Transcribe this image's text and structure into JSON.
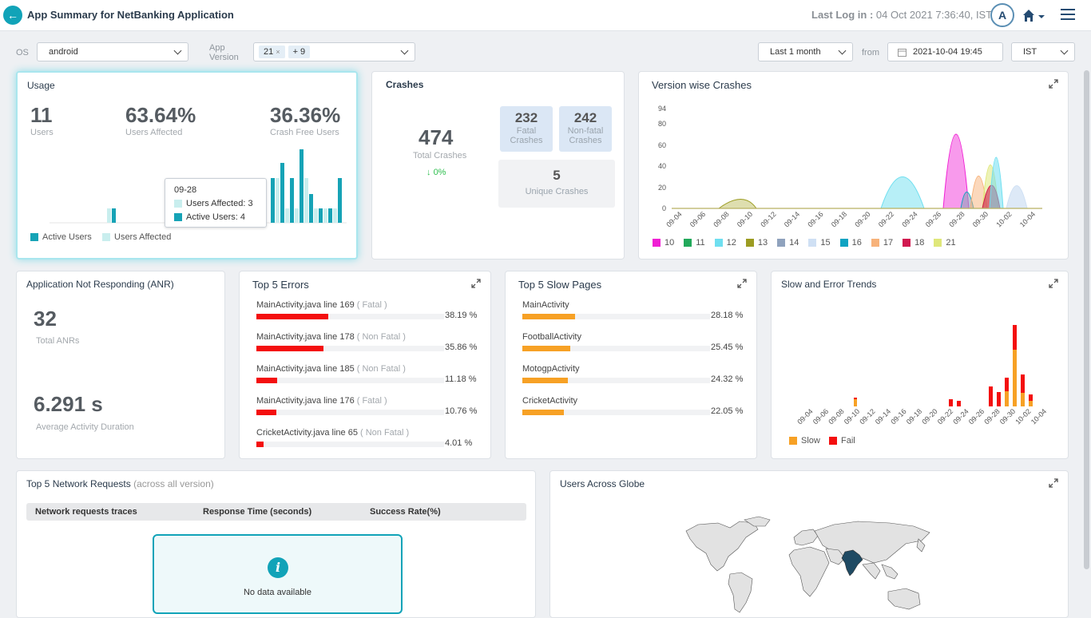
{
  "header": {
    "title": "App Summary for NetBanking Application",
    "last_login_label": "Last Log in :",
    "last_login_value": "04 Oct 2021 7:36:40, IST",
    "avatar_letter": "A"
  },
  "filters": {
    "os_label": "OS",
    "os_value": "android",
    "app_version_label_1": "App",
    "app_version_label_2": "Version",
    "version_chip": "21",
    "version_chip_x": "×",
    "version_more": "+ 9",
    "period_value": "Last 1 month",
    "from_label": "from",
    "from_value": "2021-10-04 19:45",
    "tz_value": "IST"
  },
  "usage": {
    "title": "Usage",
    "users": "11",
    "users_label": "Users",
    "affected": "63.64%",
    "affected_label": "Users Affected",
    "crashfree": "36.36%",
    "crashfree_label": "Crash Free Users",
    "tooltip_date": "09-28",
    "tooltip_affected": "Users Affected: 3",
    "tooltip_active": "Active Users: 4",
    "legend_active": "Active Users",
    "legend_affected": "Users Affected"
  },
  "crashes": {
    "title": "Crashes",
    "total": "474",
    "total_label": "Total Crashes",
    "change": "0%",
    "fatal": "232",
    "fatal_label_1": "Fatal",
    "fatal_label_2": "Crashes",
    "nonfatal": "242",
    "nonfatal_label_1": "Non-fatal",
    "nonfatal_label_2": "Crashes",
    "unique": "5",
    "unique_label": "Unique Crashes"
  },
  "version_crashes": {
    "title": "Version wise Crashes",
    "y_ticks": [
      "0",
      "20",
      "40",
      "60",
      "80",
      "94"
    ],
    "x_ticks": [
      "09-04",
      "09-06",
      "09-08",
      "09-10",
      "09-12",
      "09-14",
      "09-16",
      "09-18",
      "09-20",
      "09-22",
      "09-24",
      "09-26",
      "09-28",
      "09-30",
      "10-02",
      "10-04"
    ],
    "legend": [
      {
        "name": "10",
        "color": "#f01fd4"
      },
      {
        "name": "11",
        "color": "#22a95b"
      },
      {
        "name": "12",
        "color": "#6fdff0"
      },
      {
        "name": "13",
        "color": "#9c9c22"
      },
      {
        "name": "14",
        "color": "#8fa2bd"
      },
      {
        "name": "15",
        "color": "#cfe0f4"
      },
      {
        "name": "16",
        "color": "#0fa3c2"
      },
      {
        "name": "17",
        "color": "#f7b27a"
      },
      {
        "name": "18",
        "color": "#d1184f"
      },
      {
        "name": "21",
        "color": "#dfe77a"
      }
    ]
  },
  "anr": {
    "title": "Application Not Responding (ANR)",
    "total": "32",
    "total_label": "Total ANRs",
    "avg": "6.291 s",
    "avg_label": "Average Activity Duration"
  },
  "errors": {
    "title": "Top 5 Errors",
    "items": [
      {
        "name": "MainActivity.java line 169",
        "tag": "( Fatal )",
        "pct": "38.19 %",
        "value": 38.19
      },
      {
        "name": "MainActivity.java line 178",
        "tag": "( Non Fatal )",
        "pct": "35.86 %",
        "value": 35.86
      },
      {
        "name": "MainActivity.java line 185",
        "tag": "( Non Fatal )",
        "pct": "11.18 %",
        "value": 11.18
      },
      {
        "name": "MainActivity.java line 176",
        "tag": "( Fatal )",
        "pct": "10.76 %",
        "value": 10.76
      },
      {
        "name": "CricketActivity.java line 65",
        "tag": "( Non Fatal )",
        "pct": "4.01 %",
        "value": 4.01
      }
    ],
    "color": "#f40f0f"
  },
  "slowpages": {
    "title": "Top 5 Slow Pages",
    "items": [
      {
        "name": "MainActivity",
        "pct": "28.18 %",
        "value": 28.18
      },
      {
        "name": "FootballActivity",
        "pct": "25.45 %",
        "value": 25.45
      },
      {
        "name": "MotogpActivity",
        "pct": "24.32 %",
        "value": 24.32
      },
      {
        "name": "CricketActivity",
        "pct": "22.05 %",
        "value": 22.05
      }
    ],
    "color": "#f7a125"
  },
  "trends": {
    "title": "Slow and Error Trends",
    "x_ticks": [
      "09-04",
      "09-06",
      "09-08",
      "09-10",
      "09-12",
      "09-14",
      "09-16",
      "09-18",
      "09-20",
      "09-22",
      "09-24",
      "09-26",
      "09-28",
      "09-30",
      "10-02",
      "10-04"
    ],
    "legend_slow": "Slow",
    "legend_fail": "Fail",
    "slow_color": "#f7a125",
    "fail_color": "#f40f0f"
  },
  "network": {
    "title": "Top 5 Network Requests",
    "subtitle": "(across all version)",
    "col1": "Network requests traces",
    "col2": "Response Time (seconds)",
    "col3": "Success Rate(%)",
    "nodata": "No data available"
  },
  "globe": {
    "title": "Users Across Globe"
  }
}
